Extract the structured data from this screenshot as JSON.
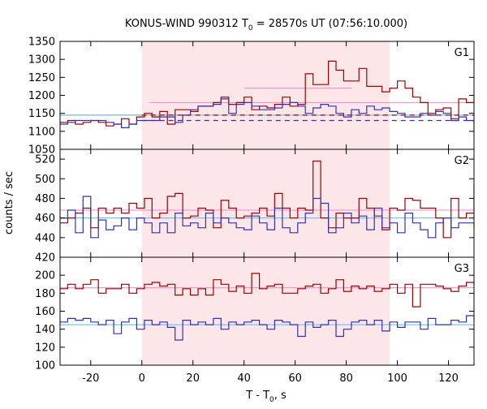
{
  "figure": {
    "title_prefix": "KONUS-WIND 990312 T",
    "title_sub": "0",
    "title_suffix": " = 28570s UT (07:56:10.000)",
    "ylabel": "counts / sec",
    "xlabel_main": "T - T",
    "xlabel_sub": "0",
    "xlabel_unit": ", s"
  },
  "colors": {
    "red_series": "#a00000",
    "blue_series": "#3030b8",
    "red_fit": "#ee88cc",
    "blue_fit": "#55bbee",
    "shade": "#fde6e8"
  },
  "chart_data": [
    {
      "type": "line",
      "panel": "G1",
      "step": true,
      "xlim": [
        -32,
        130
      ],
      "ylim": [
        1050,
        1350
      ],
      "yticks": [
        1050,
        1100,
        1150,
        1200,
        1250,
        1300,
        1350
      ],
      "shaded_interval": [
        0,
        97
      ],
      "x_start": -32,
      "bin_width": 3,
      "series": [
        {
          "values": [
            1125,
            1130,
            1120,
            1125,
            1130,
            1125,
            1115,
            1120,
            1135,
            1120,
            1140,
            1150,
            1140,
            1155,
            1120,
            1160,
            1160,
            1155,
            1170,
            1170,
            1180,
            1195,
            1175,
            1180,
            1195,
            1160,
            1170,
            1165,
            1175,
            1195,
            1170,
            1175,
            1260,
            1230,
            1230,
            1295,
            1270,
            1240,
            1240,
            1275,
            1225,
            1225,
            1210,
            1220,
            1240,
            1220,
            1195,
            1180,
            1150,
            1160,
            1165,
            1135,
            1190,
            1180,
            1195,
            1185,
            1175,
            1195,
            1200,
            1195,
            1200,
            1190,
            1185,
            1200
          ]
        },
        {
          "values": [
            1120,
            1125,
            1130,
            1130,
            1130,
            1130,
            1125,
            1120,
            1110,
            1120,
            1130,
            1130,
            1130,
            1140,
            1140,
            1125,
            1145,
            1160,
            1170,
            1170,
            1175,
            1190,
            1150,
            1175,
            1180,
            1170,
            1160,
            1160,
            1165,
            1175,
            1180,
            1170,
            1150,
            1165,
            1175,
            1170,
            1150,
            1140,
            1160,
            1150,
            1170,
            1160,
            1165,
            1155,
            1150,
            1140,
            1140,
            1150,
            1145,
            1155,
            1150,
            1130,
            1140,
            1130,
            1105,
            1150,
            1140,
            1130,
            1120,
            1110,
            1100,
            1130,
            1150,
            1150
          ]
        }
      ],
      "fits": [
        {
          "series_index": 0,
          "segments": [
            [
              -32,
              0,
              1145
            ],
            [
              3,
              97,
              1180
            ],
            [
              40,
              82,
              1220
            ],
            [
              97,
              130,
              1180
            ]
          ]
        },
        {
          "series_index": 1,
          "segments": [
            [
              -32,
              130,
              1145
            ]
          ]
        }
      ],
      "backgrounds": [
        {
          "series_index": 0,
          "segments": [
            [
              0,
              130,
              1145
            ]
          ]
        },
        {
          "series_index": 1,
          "segments": [
            [
              0,
              130,
              1130
            ]
          ]
        }
      ]
    },
    {
      "type": "line",
      "panel": "G2",
      "step": true,
      "xlim": [
        -32,
        130
      ],
      "ylim": [
        420,
        530
      ],
      "yticks": [
        420,
        440,
        460,
        480,
        500,
        520
      ],
      "shaded_interval": [
        0,
        97
      ],
      "x_start": -32,
      "bin_width": 3,
      "series": [
        {
          "values": [
            455,
            460,
            465,
            470,
            450,
            470,
            465,
            470,
            465,
            475,
            470,
            480,
            460,
            465,
            482,
            485,
            460,
            462,
            470,
            468,
            450,
            478,
            470,
            460,
            462,
            465,
            470,
            462,
            485,
            470,
            460,
            470,
            468,
            518,
            460,
            450,
            465,
            460,
            460,
            480,
            470,
            462,
            448,
            470,
            468,
            480,
            478,
            470,
            470,
            460,
            440,
            480,
            460,
            465,
            495,
            490,
            465,
            470,
            485,
            465,
            460,
            465,
            470,
            470
          ]
        },
        {
          "values": [
            460,
            468,
            445,
            482,
            440,
            458,
            448,
            452,
            460,
            448,
            460,
            455,
            445,
            455,
            445,
            465,
            452,
            455,
            450,
            465,
            455,
            460,
            455,
            450,
            448,
            462,
            455,
            448,
            470,
            450,
            445,
            455,
            465,
            480,
            475,
            445,
            450,
            465,
            455,
            462,
            448,
            470,
            450,
            455,
            445,
            465,
            455,
            448,
            440,
            455,
            460,
            450,
            455,
            455,
            450,
            445,
            455,
            450,
            460,
            450,
            445,
            440,
            452,
            440
          ]
        }
      ],
      "fits": [
        {
          "series_index": 0,
          "segments": [
            [
              -32,
              130,
              468
            ]
          ]
        },
        {
          "series_index": 1,
          "segments": [
            [
              -32,
              130,
              460
            ]
          ]
        }
      ],
      "backgrounds": []
    },
    {
      "type": "line",
      "panel": "G3",
      "step": true,
      "xlim": [
        -32,
        130
      ],
      "ylim": [
        100,
        220
      ],
      "yticks": [
        100,
        120,
        140,
        160,
        180,
        200
      ],
      "shaded_interval": [
        0,
        97
      ],
      "x_start": -32,
      "bin_width": 3,
      "series": [
        {
          "values": [
            185,
            190,
            185,
            190,
            195,
            180,
            185,
            185,
            190,
            180,
            185,
            190,
            192,
            188,
            190,
            178,
            185,
            178,
            185,
            178,
            195,
            190,
            182,
            188,
            180,
            202,
            185,
            188,
            190,
            180,
            180,
            185,
            188,
            190,
            180,
            185,
            195,
            182,
            188,
            185,
            188,
            182,
            185,
            190,
            180,
            190,
            165,
            190,
            190,
            188,
            185,
            182,
            188,
            192,
            190,
            195,
            207,
            190,
            192,
            185,
            183,
            185,
            195,
            185
          ]
        },
        {
          "values": [
            148,
            152,
            150,
            152,
            148,
            145,
            150,
            135,
            148,
            152,
            140,
            150,
            145,
            148,
            142,
            128,
            150,
            145,
            148,
            145,
            152,
            140,
            148,
            145,
            148,
            150,
            145,
            140,
            150,
            148,
            145,
            132,
            148,
            142,
            145,
            150,
            132,
            140,
            148,
            150,
            145,
            150,
            138,
            148,
            142,
            148,
            148,
            140,
            152,
            145,
            145,
            150,
            148,
            155,
            150,
            148,
            140,
            158,
            150,
            142,
            150,
            148,
            142,
            148
          ]
        }
      ],
      "fits": [
        {
          "series_index": 0,
          "segments": [
            [
              -32,
              130,
              186
            ]
          ]
        },
        {
          "series_index": 1,
          "segments": [
            [
              -32,
              130,
              145
            ]
          ]
        }
      ],
      "backgrounds": []
    }
  ],
  "xaxis": {
    "xlim": [
      -32,
      130
    ],
    "ticks": [
      -20,
      0,
      20,
      40,
      60,
      80,
      100,
      120
    ],
    "tick_labels": [
      "-20",
      "0",
      "20",
      "40",
      "60",
      "80",
      "100",
      "120"
    ]
  }
}
